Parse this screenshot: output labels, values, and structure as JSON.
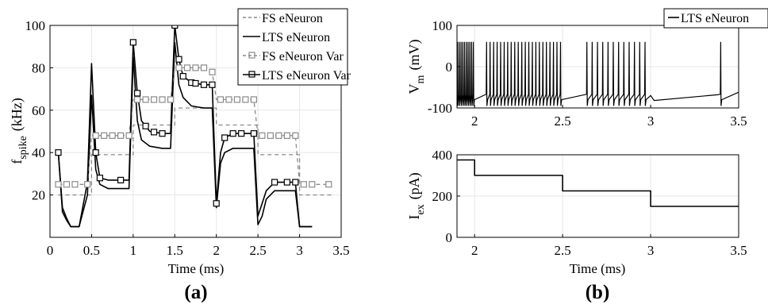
{
  "chart_data": [
    {
      "type": "line",
      "panel_label": "(a)",
      "xlabel": "Time (ms)",
      "ylabel_main": "f",
      "ylabel_sub": "spike",
      "ylabel_unit": "(kHz)",
      "xlim": [
        0,
        3.5
      ],
      "ylim": [
        0,
        100
      ],
      "xticks": [
        "0",
        "0.5",
        "1",
        "1.5",
        "2",
        "2.5",
        "3",
        "3.5"
      ],
      "yticks": [
        "20",
        "40",
        "60",
        "80",
        "100"
      ],
      "grid": true,
      "legend_position": "top-right",
      "series": [
        {
          "name": "FS eNeuron",
          "style": "dashed",
          "color": "#8a8a8a",
          "x": [
            0.1,
            0.5,
            0.5,
            1.0,
            1.0,
            1.5,
            1.5,
            2.0,
            2.0,
            2.5,
            2.5,
            3.0,
            3.0,
            3.4
          ],
          "y": [
            20,
            20,
            39,
            39,
            53,
            53,
            61,
            61,
            53,
            53,
            39,
            39,
            20,
            20
          ]
        },
        {
          "name": "LTS eNeuron",
          "style": "solid",
          "color": "#000000",
          "x": [
            0.1,
            0.15,
            0.2,
            0.25,
            0.35,
            0.45,
            0.5,
            0.55,
            0.6,
            0.7,
            0.85,
            0.95,
            1.0,
            1.05,
            1.1,
            1.2,
            1.35,
            1.45,
            1.5,
            1.55,
            1.6,
            1.7,
            1.85,
            1.95,
            2.0,
            2.05,
            2.1,
            2.2,
            2.35,
            2.45,
            2.5,
            2.55,
            2.6,
            2.7,
            2.85,
            2.95,
            3.0,
            3.05,
            3.15
          ],
          "y": [
            40,
            12,
            8,
            5,
            5,
            20,
            67,
            32,
            25,
            23,
            23,
            23,
            85,
            55,
            46,
            43,
            42,
            42,
            92,
            72,
            66,
            62,
            61,
            61,
            14,
            35,
            40,
            42,
            42,
            42,
            6,
            10,
            18,
            22,
            22,
            22,
            5,
            5,
            5
          ]
        },
        {
          "name": "FS eNeuron Var",
          "style": "dashed-square",
          "color": "#8a8a8a",
          "x": [
            0.1,
            0.2,
            0.3,
            0.4,
            0.45,
            0.5,
            0.55,
            0.65,
            0.75,
            0.85,
            0.95,
            1.0,
            1.05,
            1.15,
            1.25,
            1.35,
            1.45,
            1.5,
            1.55,
            1.65,
            1.75,
            1.85,
            1.95,
            2.0,
            2.05,
            2.15,
            2.25,
            2.35,
            2.45,
            2.5,
            2.55,
            2.65,
            2.75,
            2.85,
            2.95,
            3.0,
            3.05,
            3.15,
            3.25,
            3.35
          ],
          "y": [
            25,
            25,
            25,
            25,
            25,
            48,
            48,
            48,
            48,
            48,
            48,
            65,
            65,
            65,
            65,
            65,
            65,
            80,
            80,
            80,
            80,
            80,
            78,
            65,
            65,
            65,
            65,
            65,
            65,
            48,
            48,
            48,
            48,
            48,
            48,
            25,
            25,
            25,
            25,
            25
          ],
          "markers_x": [
            0.1,
            0.2,
            0.3,
            0.45,
            0.55,
            0.65,
            0.75,
            0.85,
            0.95,
            1.05,
            1.15,
            1.25,
            1.35,
            1.45,
            1.55,
            1.65,
            1.75,
            1.85,
            1.95,
            2.05,
            2.15,
            2.25,
            2.35,
            2.45,
            2.55,
            2.65,
            2.75,
            2.85,
            2.95,
            3.05,
            3.15,
            3.35
          ]
        },
        {
          "name": "LTS eNeuron Var",
          "style": "solid-square",
          "color": "#000000",
          "x": [
            0.1,
            0.15,
            0.2,
            0.25,
            0.35,
            0.45,
            0.5,
            0.55,
            0.6,
            0.7,
            0.85,
            0.95,
            1.0,
            1.05,
            1.1,
            1.2,
            1.35,
            1.45,
            1.5,
            1.55,
            1.6,
            1.7,
            1.85,
            1.95,
            2.0,
            2.05,
            2.1,
            2.2,
            2.35,
            2.45,
            2.5,
            2.55,
            2.6,
            2.7,
            2.85,
            2.95,
            3.0,
            3.05,
            3.15
          ],
          "y": [
            40,
            14,
            9,
            5,
            5,
            26,
            82,
            40,
            28,
            27,
            27,
            27,
            92,
            68,
            55,
            50,
            49,
            49,
            100,
            84,
            76,
            73,
            72,
            72,
            16,
            40,
            47,
            49,
            49,
            49,
            10,
            16,
            22,
            26,
            26,
            26,
            5,
            5,
            5
          ],
          "markers_x": [
            0.1,
            0.55,
            0.6,
            0.85,
            1.0,
            1.05,
            1.15,
            1.25,
            1.35,
            1.5,
            1.55,
            1.6,
            1.7,
            1.75,
            1.85,
            1.95,
            2.0,
            2.1,
            2.2,
            2.3,
            2.45,
            2.7,
            2.85,
            2.95
          ]
        }
      ]
    },
    {
      "type": "line",
      "panel_label": "",
      "xlabel": "",
      "ylabel_main": "V",
      "ylabel_sub": "m",
      "ylabel_unit": "(mV)",
      "xlim": [
        1.9,
        3.5
      ],
      "ylim": [
        -100,
        100
      ],
      "xticks": [
        "2",
        "2.5",
        "3",
        "3.5"
      ],
      "yticks": [
        "-100",
        "0",
        "100"
      ],
      "grid": true,
      "legend_position": "top-right",
      "series": [
        {
          "name": "LTS eNeuron",
          "style": "spikes",
          "color": "#000000",
          "baseline": -75,
          "spike_peak": 60,
          "spike_times": [
            1.905,
            1.915,
            1.925,
            1.935,
            1.945,
            1.955,
            1.965,
            1.975,
            1.985,
            1.995,
            2.07,
            2.09,
            2.11,
            2.13,
            2.15,
            2.17,
            2.19,
            2.21,
            2.23,
            2.25,
            2.27,
            2.29,
            2.31,
            2.33,
            2.35,
            2.37,
            2.39,
            2.41,
            2.43,
            2.45,
            2.47,
            2.49,
            2.64,
            2.67,
            2.7,
            2.73,
            2.76,
            2.79,
            2.82,
            2.85,
            2.88,
            2.91,
            2.94,
            2.97,
            3.4
          ]
        }
      ]
    },
    {
      "type": "line",
      "panel_label": "(b)",
      "xlabel": "Time (ms)",
      "ylabel_main": "I",
      "ylabel_sub": "ex",
      "ylabel_unit": "(pA)",
      "xlim": [
        1.9,
        3.5
      ],
      "ylim": [
        0,
        400
      ],
      "xticks": [
        "2",
        "2.5",
        "3",
        "3.5"
      ],
      "yticks": [
        "0",
        "200",
        "400"
      ],
      "grid": true,
      "series": [
        {
          "name": "",
          "style": "solid",
          "color": "#000000",
          "x": [
            1.9,
            2.0,
            2.0,
            2.5,
            2.5,
            3.0,
            3.0,
            3.5
          ],
          "y": [
            375,
            375,
            300,
            300,
            225,
            225,
            150,
            150
          ]
        }
      ]
    }
  ]
}
